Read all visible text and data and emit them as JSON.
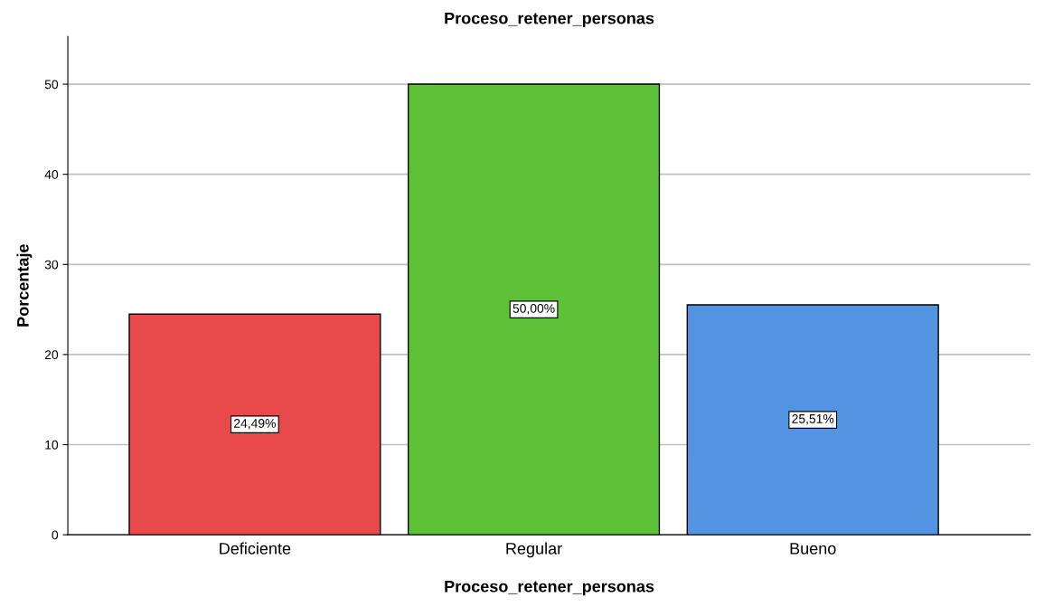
{
  "chart_data": {
    "type": "bar",
    "title": "Proceso_retener_personas",
    "xlabel": "Proceso_retener_personas",
    "ylabel": "Porcentaje",
    "categories": [
      "Deficiente",
      "Regular",
      "Bueno"
    ],
    "values": [
      24.49,
      50.0,
      25.51
    ],
    "colors": [
      "#e8494a",
      "#5ec238",
      "#5294e2"
    ],
    "value_labels": [
      "24,49%",
      "50,00%",
      "25,51%"
    ],
    "ylim": [
      0,
      55.3
    ],
    "yticks": [
      0,
      10,
      20,
      30,
      40,
      50
    ],
    "grid": "y"
  }
}
